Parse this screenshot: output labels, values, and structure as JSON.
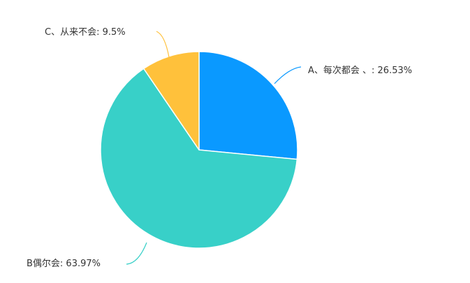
{
  "chart_data": {
    "type": "pie",
    "slices": [
      {
        "label": "A、每次都会 、:",
        "value": 26.53,
        "display": "26.53%",
        "color": "#0a99ff"
      },
      {
        "label": "B偶尔会:",
        "value": 63.97,
        "display": "63.97%",
        "color": "#38d0c8"
      },
      {
        "label": "C、从来不会:",
        "value": 9.5,
        "display": "9.5%",
        "color": "#ffc13b"
      }
    ],
    "slice_texts": [
      "A、每次都会 、: 26.53%",
      "B偶尔会: 63.97%",
      "C、从来不会: 9.5%"
    ]
  }
}
